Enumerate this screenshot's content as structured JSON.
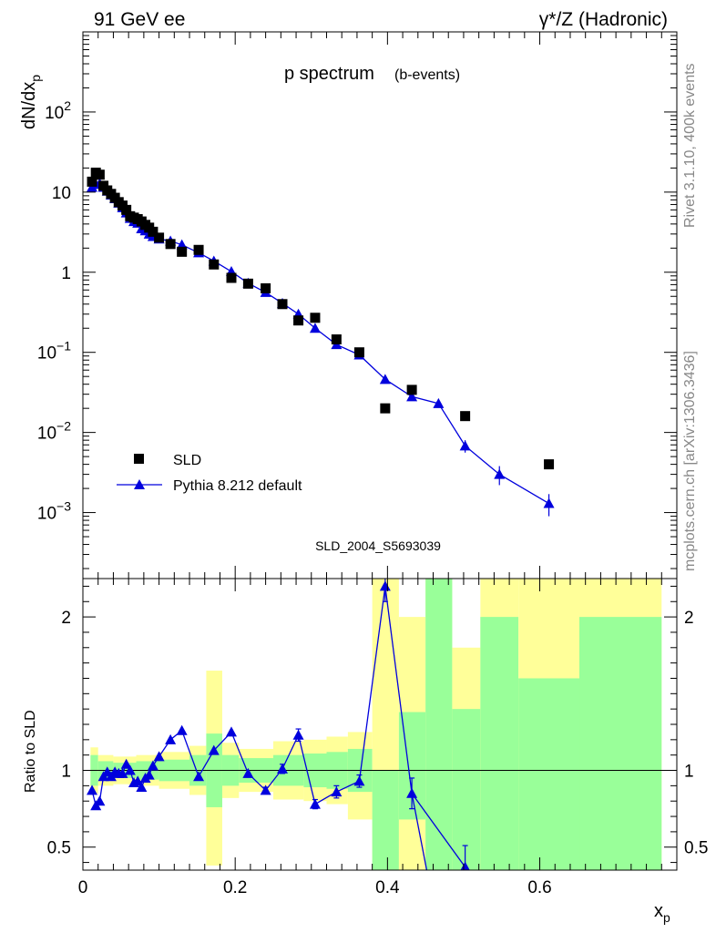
{
  "header": {
    "left": "91 GeV ee",
    "right": "γ*/Z (Hadronic)"
  },
  "side_labels": {
    "rivet": "Rivet 3.1.10,  400k events",
    "mcplots": "mcplots.cern.ch [arXiv:1306.3436]"
  },
  "chart_data": [
    {
      "type": "scatter",
      "title": "p spectrum",
      "subtitle": "(b-events)",
      "analysis_id": "SLD_2004_S5693039",
      "xlabel": "x",
      "xlabel_sub": "p",
      "ylabel": "dN/dx",
      "ylabel_sub": "p",
      "yscale": "log",
      "xlim": [
        0,
        0.78
      ],
      "ylim": [
        0.00015,
        1000
      ],
      "x_ticks": [
        "0",
        "0.2",
        "0.4",
        "0.6"
      ],
      "y_ticks": [
        {
          "value": 0.001,
          "base": "10",
          "exp": "−3"
        },
        {
          "value": 0.01,
          "base": "10",
          "exp": "−2"
        },
        {
          "value": 0.1,
          "base": "10",
          "exp": "−1"
        },
        {
          "value": 1,
          "base": "1",
          "exp": ""
        },
        {
          "value": 10,
          "base": "10",
          "exp": ""
        },
        {
          "value": 100,
          "base": "10",
          "exp": "2"
        }
      ],
      "legend_position": "bottom-left",
      "series": [
        {
          "name": "SLD",
          "marker": "square",
          "color": "#000000",
          "x": [
            0.012,
            0.017,
            0.022,
            0.027,
            0.032,
            0.037,
            0.042,
            0.047,
            0.052,
            0.057,
            0.062,
            0.067,
            0.072,
            0.077,
            0.082,
            0.087,
            0.092,
            0.1,
            0.115,
            0.13,
            0.152,
            0.172,
            0.195,
            0.217,
            0.24,
            0.262,
            0.283,
            0.305,
            0.333,
            0.363,
            0.397,
            0.432,
            0.502,
            0.612
          ],
          "y": [
            13.5,
            17.5,
            16.5,
            12,
            10.5,
            9.5,
            8.5,
            7.5,
            6.8,
            6.0,
            5.0,
            4.8,
            4.6,
            4.3,
            3.9,
            3.6,
            3.2,
            2.7,
            2.25,
            1.8,
            1.9,
            1.25,
            0.85,
            0.72,
            0.63,
            0.4,
            0.25,
            0.27,
            0.145,
            0.1,
            0.02,
            0.034,
            0.016,
            0.004
          ]
        },
        {
          "name": "Pythia 8.212 default",
          "marker": "triangle",
          "color": "#0000dd",
          "x": [
            0.012,
            0.017,
            0.022,
            0.027,
            0.032,
            0.037,
            0.042,
            0.047,
            0.052,
            0.057,
            0.062,
            0.067,
            0.072,
            0.077,
            0.082,
            0.087,
            0.092,
            0.1,
            0.115,
            0.13,
            0.152,
            0.172,
            0.195,
            0.217,
            0.24,
            0.262,
            0.283,
            0.305,
            0.333,
            0.363,
            0.397,
            0.432,
            0.467,
            0.502,
            0.547,
            0.612
          ],
          "y": [
            11.5,
            12.5,
            12.8,
            11.5,
            10.3,
            9.2,
            8.3,
            7.3,
            6.4,
            5.5,
            4.7,
            4.3,
            4.1,
            3.5,
            3.3,
            3.0,
            2.8,
            2.6,
            2.45,
            2.2,
            1.75,
            1.38,
            1.02,
            0.73,
            0.56,
            0.41,
            0.3,
            0.2,
            0.125,
            0.093,
            0.046,
            0.028,
            0.023,
            0.0068,
            0.003,
            0.0013
          ],
          "yerr": [
            0,
            0,
            0,
            0,
            0,
            0,
            0,
            0,
            0,
            0,
            0,
            0,
            0,
            0,
            0,
            0,
            0,
            0,
            0,
            0,
            0,
            0,
            0,
            0,
            0,
            0,
            0,
            0,
            0,
            0,
            0,
            0.002,
            0.0015,
            0.0012,
            0.0008,
            0.0004
          ]
        }
      ]
    },
    {
      "type": "line",
      "ylabel": "Ratio to SLD",
      "xlim": [
        0,
        0.78
      ],
      "ylim": [
        0.35,
        2.25
      ],
      "y_ticks": [
        "0.5",
        "1",
        "2"
      ],
      "reference_line": 1,
      "x_ticks": [
        "0",
        "0.2",
        "0.4",
        "0.6"
      ],
      "uncertainty_bands": {
        "inner_color": "#99ff99",
        "outer_color": "#ffff99",
        "bins": [
          {
            "x0": 0.01,
            "x1": 0.02,
            "y_lo": 0.85,
            "y_hi": 1.15,
            "g_lo": 0.9,
            "g_hi": 1.1
          },
          {
            "x0": 0.02,
            "x1": 0.04,
            "y_lo": 0.9,
            "y_hi": 1.1,
            "g_lo": 0.94,
            "g_hi": 1.06
          },
          {
            "x0": 0.04,
            "x1": 0.07,
            "y_lo": 0.91,
            "y_hi": 1.09,
            "g_lo": 0.95,
            "g_hi": 1.05
          },
          {
            "x0": 0.07,
            "x1": 0.1,
            "y_lo": 0.9,
            "y_hi": 1.1,
            "g_lo": 0.94,
            "g_hi": 1.06
          },
          {
            "x0": 0.1,
            "x1": 0.14,
            "y_lo": 0.88,
            "y_hi": 1.12,
            "g_lo": 0.93,
            "g_hi": 1.07
          },
          {
            "x0": 0.14,
            "x1": 0.162,
            "y_lo": 0.84,
            "y_hi": 1.16,
            "g_lo": 0.9,
            "g_hi": 1.1
          },
          {
            "x0": 0.162,
            "x1": 0.183,
            "y_lo": 0.38,
            "y_hi": 1.65,
            "g_lo": 0.76,
            "g_hi": 1.24
          },
          {
            "x0": 0.183,
            "x1": 0.205,
            "y_lo": 0.82,
            "y_hi": 1.18,
            "g_lo": 0.9,
            "g_hi": 1.1
          },
          {
            "x0": 0.205,
            "x1": 0.25,
            "y_lo": 0.86,
            "y_hi": 1.14,
            "g_lo": 0.92,
            "g_hi": 1.08
          },
          {
            "x0": 0.25,
            "x1": 0.29,
            "y_lo": 0.81,
            "y_hi": 1.19,
            "g_lo": 0.9,
            "g_hi": 1.1
          },
          {
            "x0": 0.29,
            "x1": 0.32,
            "y_lo": 0.8,
            "y_hi": 1.2,
            "g_lo": 0.89,
            "g_hi": 1.11
          },
          {
            "x0": 0.32,
            "x1": 0.348,
            "y_lo": 0.78,
            "y_hi": 1.22,
            "g_lo": 0.88,
            "g_hi": 1.12
          },
          {
            "x0": 0.348,
            "x1": 0.38,
            "y_lo": 0.68,
            "y_hi": 1.25,
            "g_lo": 0.86,
            "g_hi": 1.14
          },
          {
            "x0": 0.38,
            "x1": 0.415,
            "y_lo": 0.35,
            "y_hi": 2.25,
            "g_lo": 0.35,
            "g_hi": 1.0
          },
          {
            "x0": 0.415,
            "x1": 0.45,
            "y_lo": 0.35,
            "y_hi": 2.0,
            "g_lo": 0.68,
            "g_hi": 1.38
          },
          {
            "x0": 0.45,
            "x1": 0.485,
            "y_lo": 0.35,
            "y_hi": 2.25,
            "g_lo": 0.35,
            "g_hi": 2.25
          },
          {
            "x0": 0.485,
            "x1": 0.522,
            "y_lo": 0.35,
            "y_hi": 1.8,
            "g_lo": 0.35,
            "g_hi": 1.4
          },
          {
            "x0": 0.522,
            "x1": 0.572,
            "y_lo": 0.35,
            "y_hi": 2.25,
            "g_lo": 0.35,
            "g_hi": 2.0
          },
          {
            "x0": 0.572,
            "x1": 0.652,
            "y_lo": 0.35,
            "y_hi": 2.25,
            "g_lo": 0.35,
            "g_hi": 1.6
          },
          {
            "x0": 0.652,
            "x1": 0.76,
            "y_lo": 0.35,
            "y_hi": 2.25,
            "g_lo": 0.35,
            "g_hi": 2.0
          }
        ]
      },
      "series": [
        {
          "name": "Pythia 8.212 default / SLD",
          "color": "#0000dd",
          "x": [
            0.012,
            0.017,
            0.022,
            0.027,
            0.032,
            0.037,
            0.042,
            0.047,
            0.052,
            0.057,
            0.062,
            0.067,
            0.072,
            0.077,
            0.082,
            0.087,
            0.092,
            0.1,
            0.115,
            0.13,
            0.152,
            0.172,
            0.195,
            0.217,
            0.24,
            0.262,
            0.283,
            0.305,
            0.333,
            0.363,
            0.397,
            0.432,
            0.502
          ],
          "y": [
            0.87,
            0.77,
            0.8,
            0.96,
            0.99,
            0.96,
            0.99,
            0.98,
            0.98,
            1.04,
            1.0,
            0.92,
            0.93,
            0.89,
            0.95,
            0.97,
            1.03,
            1.09,
            1.2,
            1.26,
            0.96,
            1.13,
            1.25,
            0.98,
            0.87,
            1.01,
            1.23,
            0.78,
            0.86,
            0.93,
            2.2,
            0.85,
            0.37
          ],
          "yerr": [
            0,
            0,
            0,
            0,
            0,
            0,
            0,
            0,
            0,
            0,
            0,
            0,
            0,
            0,
            0,
            0,
            0,
            0,
            0,
            0,
            0,
            0,
            0,
            0,
            0.02,
            0.03,
            0.04,
            0.03,
            0.04,
            0.04,
            0.1,
            0.1,
            0.14
          ]
        }
      ]
    }
  ]
}
